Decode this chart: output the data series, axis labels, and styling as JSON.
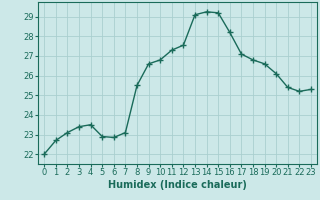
{
  "x": [
    0,
    1,
    2,
    3,
    4,
    5,
    6,
    7,
    8,
    9,
    10,
    11,
    12,
    13,
    14,
    15,
    16,
    17,
    18,
    19,
    20,
    21,
    22,
    23
  ],
  "y": [
    22.0,
    22.7,
    23.1,
    23.4,
    23.5,
    22.9,
    22.85,
    23.1,
    25.5,
    26.6,
    26.8,
    27.3,
    27.55,
    29.1,
    29.25,
    29.2,
    28.2,
    27.1,
    26.8,
    26.6,
    26.1,
    25.4,
    25.2,
    25.3
  ],
  "line_color": "#1a6b5a",
  "marker": "+",
  "marker_size": 4,
  "bg_color": "#cce8e8",
  "grid_color": "#aacfcf",
  "xlabel": "Humidex (Indice chaleur)",
  "xlim": [
    -0.5,
    23.5
  ],
  "ylim": [
    21.5,
    29.75
  ],
  "yticks": [
    22,
    23,
    24,
    25,
    26,
    27,
    28,
    29
  ],
  "xticks": [
    0,
    1,
    2,
    3,
    4,
    5,
    6,
    7,
    8,
    9,
    10,
    11,
    12,
    13,
    14,
    15,
    16,
    17,
    18,
    19,
    20,
    21,
    22,
    23
  ],
  "tick_fontsize": 6,
  "xlabel_fontsize": 7,
  "axis_color": "#1a6b5a",
  "spine_color": "#1a6b5a"
}
